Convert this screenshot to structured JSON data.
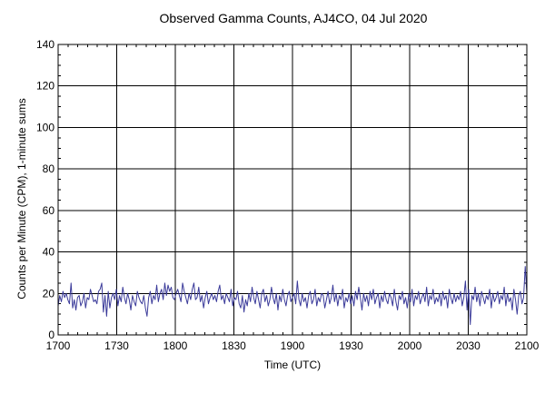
{
  "chart_data": {
    "type": "line",
    "title": "Observed Gamma Counts, AJ4CO, 04 Jul 2020",
    "xlabel": "Time (UTC)",
    "ylabel": "Counts per Minute (CPM), 1-minute sums",
    "xlim": [
      "1700",
      "2100"
    ],
    "ylim": [
      0,
      140
    ],
    "x_tick_labels": [
      "1700",
      "1730",
      "1800",
      "1830",
      "1900",
      "1930",
      "2000",
      "2030",
      "2100"
    ],
    "y_tick_labels": [
      "0",
      "20",
      "40",
      "60",
      "80",
      "100",
      "120",
      "140"
    ],
    "y_tick_values": [
      0,
      20,
      40,
      60,
      80,
      100,
      120,
      140
    ],
    "grid": true,
    "reference_line": 20,
    "line_color": "#3b3b9a",
    "sample_interval_minutes": 1,
    "series": [
      {
        "values": [
          14,
          19,
          16,
          21,
          18,
          20,
          17,
          15,
          25,
          13,
          17,
          12,
          18,
          19,
          14,
          16,
          20,
          13,
          18,
          17,
          22,
          19,
          16,
          17,
          15,
          21,
          22,
          25,
          11,
          19,
          9,
          21,
          13,
          18,
          20,
          17,
          22,
          14,
          19,
          16,
          23,
          18,
          15,
          20,
          17,
          12,
          19,
          16,
          14,
          21,
          18,
          16,
          15,
          19,
          13,
          9,
          18,
          21,
          15,
          19,
          17,
          24,
          16,
          20,
          22,
          17,
          25,
          19,
          24,
          21,
          23,
          18,
          17,
          20,
          22,
          19,
          16,
          25,
          21,
          18,
          15,
          20,
          17,
          22,
          25,
          17,
          18,
          23,
          16,
          19,
          13,
          18,
          21,
          15,
          18,
          20,
          17,
          19,
          16,
          21,
          24,
          17,
          19,
          15,
          20,
          18,
          16,
          22,
          14,
          18,
          17,
          21,
          15,
          13,
          19,
          11,
          17,
          14,
          20,
          16,
          23,
          18,
          15,
          21,
          17,
          13,
          20,
          22,
          16,
          19,
          14,
          17,
          23,
          18,
          15,
          20,
          12,
          19,
          16,
          22,
          17,
          14,
          19,
          21,
          16,
          18,
          20,
          15,
          26,
          17,
          14,
          20,
          16,
          18,
          13,
          19,
          21,
          15,
          17,
          22,
          14,
          18,
          16,
          20,
          19,
          13,
          17,
          21,
          15,
          18,
          24,
          16,
          20,
          14,
          19,
          17,
          22,
          13,
          18,
          16,
          20,
          15,
          19,
          14,
          21,
          17,
          23,
          18,
          12,
          20,
          16,
          19,
          14,
          21,
          17,
          22,
          15,
          18,
          20,
          13,
          19,
          16,
          21,
          17,
          15,
          20,
          18,
          14,
          22,
          16,
          12,
          19,
          17,
          21,
          15,
          18,
          13,
          20,
          16,
          22,
          14,
          19,
          17,
          21,
          15,
          18,
          20,
          16,
          23,
          14,
          19,
          17,
          22,
          15,
          18,
          16,
          20,
          14,
          21,
          17,
          19,
          13,
          22,
          18,
          15,
          20,
          16,
          19,
          17,
          21,
          14,
          18,
          26,
          12,
          22,
          5,
          19,
          17,
          23,
          16,
          20,
          14,
          21,
          18,
          15,
          19,
          17,
          22,
          13,
          20,
          16,
          18,
          21,
          15,
          19,
          17,
          23,
          14,
          20,
          16,
          18,
          12,
          22,
          17,
          10,
          19,
          21,
          15,
          18,
          33,
          20
        ]
      }
    ]
  }
}
